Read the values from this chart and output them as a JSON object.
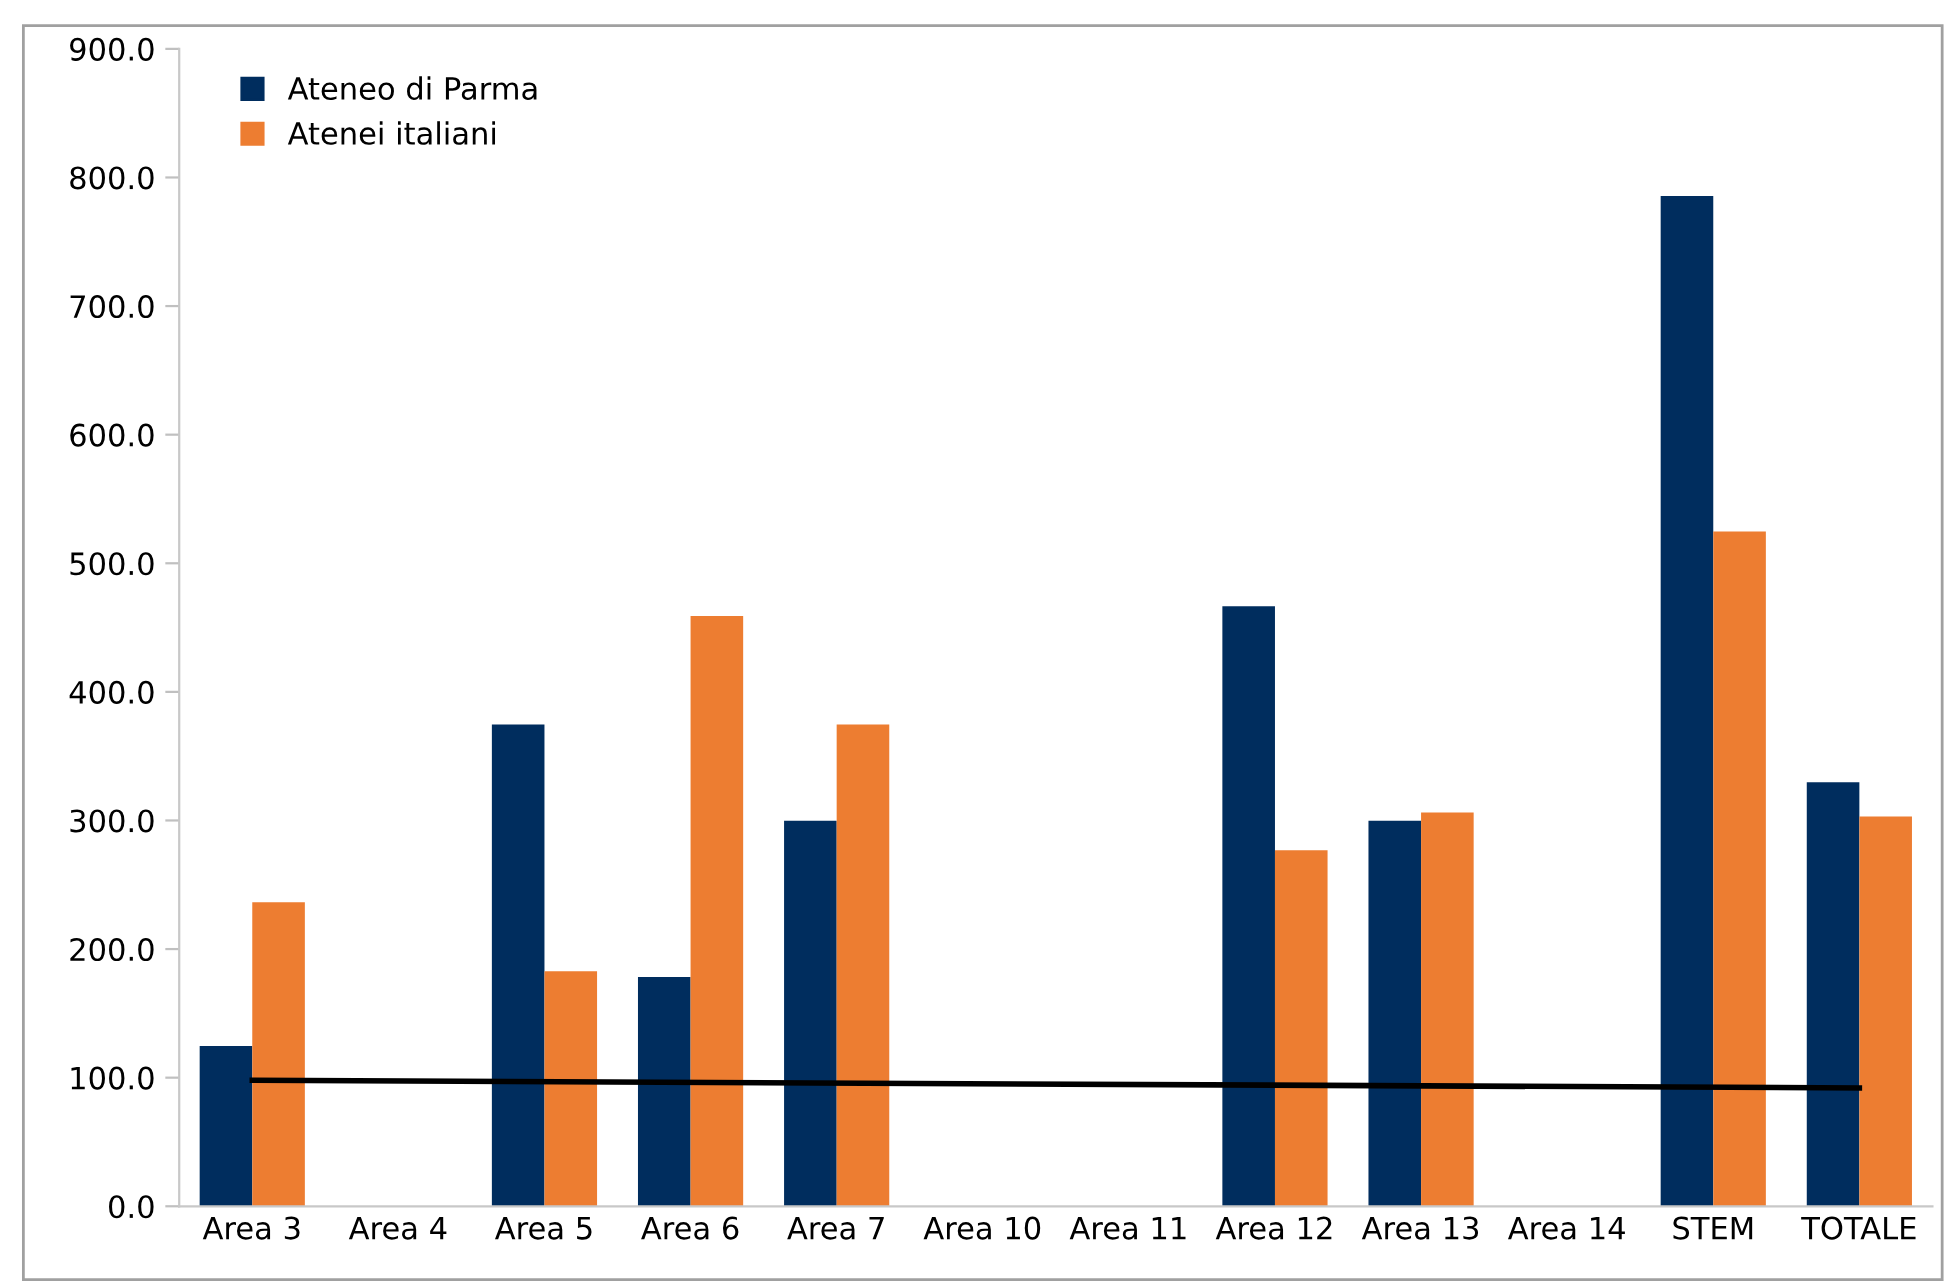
{
  "chart_data": {
    "type": "bar",
    "categories": [
      "Area 3",
      "Area 4",
      "Area 5",
      "Area 6",
      "Area 7",
      "Area 10",
      "Area 11",
      "Area 12",
      "Area 13",
      "Area 14",
      "STEM",
      "TOTALE"
    ],
    "series": [
      {
        "name": "Ateneo di Parma",
        "color": "#002d5e",
        "values": [
          124.6,
          null,
          374.6,
          178.3,
          299.8,
          null,
          null,
          466.6,
          299.8,
          null,
          785.6,
          329.8
        ]
      },
      {
        "name": "Atenei italiani",
        "color": "#ed7d31",
        "values": [
          236.5,
          null,
          182.8,
          459.0,
          374.6,
          null,
          null,
          276.8,
          306.2,
          null,
          524.8,
          303.0
        ]
      },
      {
        "type": "line",
        "color": "#000000",
        "x": [
          "Area 3",
          "TOTALE"
        ],
        "values": [
          98,
          92
        ]
      }
    ],
    "ylim": [
      0,
      900
    ],
    "yticks": [
      {
        "value": 0,
        "label": "0.0"
      },
      {
        "value": 100,
        "label": "100.0"
      },
      {
        "value": 200,
        "label": "200.0"
      },
      {
        "value": 300,
        "label": "300.0"
      },
      {
        "value": 400,
        "label": "400.0"
      },
      {
        "value": 500,
        "label": "500.0"
      },
      {
        "value": 600,
        "label": "600.0"
      },
      {
        "value": 700,
        "label": "700.0"
      },
      {
        "value": 800,
        "label": "800.0"
      },
      {
        "value": 900,
        "label": "900.0"
      }
    ],
    "grid": false,
    "legend": "top left"
  }
}
